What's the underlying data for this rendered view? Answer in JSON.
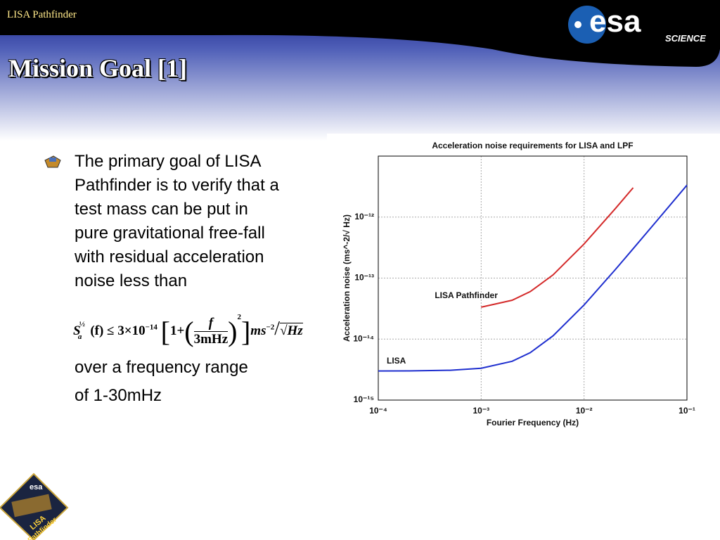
{
  "header": {
    "running_title": "LISA Pathfinder",
    "logo_text": "esa",
    "logo_subtext": "SCIENCE"
  },
  "slide": {
    "title": "Mission Goal [1]",
    "bullet_lines": [
      "The primary goal of LISA",
      "Pathfinder is to verify that a",
      "test mass can be put in",
      "pure gravitational free-fall",
      "with residual acceleration",
      "noise less than"
    ],
    "formula": {
      "symbol": "S",
      "subscript": "a",
      "power": "½",
      "lhs": "(f) ≤ 3×10",
      "exponent": "−14",
      "one_plus": "1+",
      "numerator": "f",
      "denominator": "3mHz",
      "square": "2",
      "unit": "ms",
      "unit_exponent": "−2",
      "slash": "/",
      "root_unit": "Hz"
    },
    "after_lines": [
      "over a frequency range",
      "of 1-30mHz"
    ],
    "mission_logo": {
      "agency": "esa",
      "name_1": "LISA",
      "name_2": "Pathfinder"
    }
  },
  "chart_data": {
    "type": "line",
    "title": "Acceleration noise requirements for LISA and LPF",
    "x_label": "Fourier Frequency (Hz)",
    "y_label": "Acceleration noise (ms^-2/√ Hz)",
    "x": [
      0.0001,
      0.0002,
      0.0005,
      0.001,
      0.002,
      0.003,
      0.005,
      0.01,
      0.02,
      0.03,
      0.05,
      0.1
    ],
    "series": [
      {
        "name": "LISA",
        "color": "#1f2fcf",
        "values": [
          3e-15,
          3.01e-15,
          3.08e-15,
          3.33e-15,
          4.33e-15,
          6e-15,
          1.13e-14,
          3.63e-14,
          1.36e-13,
          3.03e-13,
          8.36e-13,
          3.34e-12
        ]
      },
      {
        "name": "LISA Pathfinder",
        "color": "#d42a2a",
        "values": [
          null,
          null,
          null,
          3.33e-14,
          4.33e-14,
          6e-14,
          1.13e-13,
          3.63e-13,
          1.36e-12,
          3.03e-12,
          null,
          null
        ]
      }
    ],
    "xlim": [
      0.0001,
      0.1
    ],
    "ylim": [
      1e-15,
      1e-11
    ],
    "log_x": true,
    "log_y": true,
    "grid": true,
    "xticks": [
      {
        "value": 0.0001,
        "label": "10⁻⁴"
      },
      {
        "value": 0.001,
        "label": "10⁻³"
      },
      {
        "value": 0.01,
        "label": "10⁻²"
      },
      {
        "value": 0.1,
        "label": "10⁻¹"
      }
    ],
    "yticks": [
      {
        "value": 1e-15,
        "label": "10⁻¹⁵"
      },
      {
        "value": 1e-14,
        "label": "10⁻¹⁴"
      },
      {
        "value": 1e-13,
        "label": "10⁻¹³"
      },
      {
        "value": 1e-12,
        "label": "10⁻¹²"
      }
    ]
  }
}
